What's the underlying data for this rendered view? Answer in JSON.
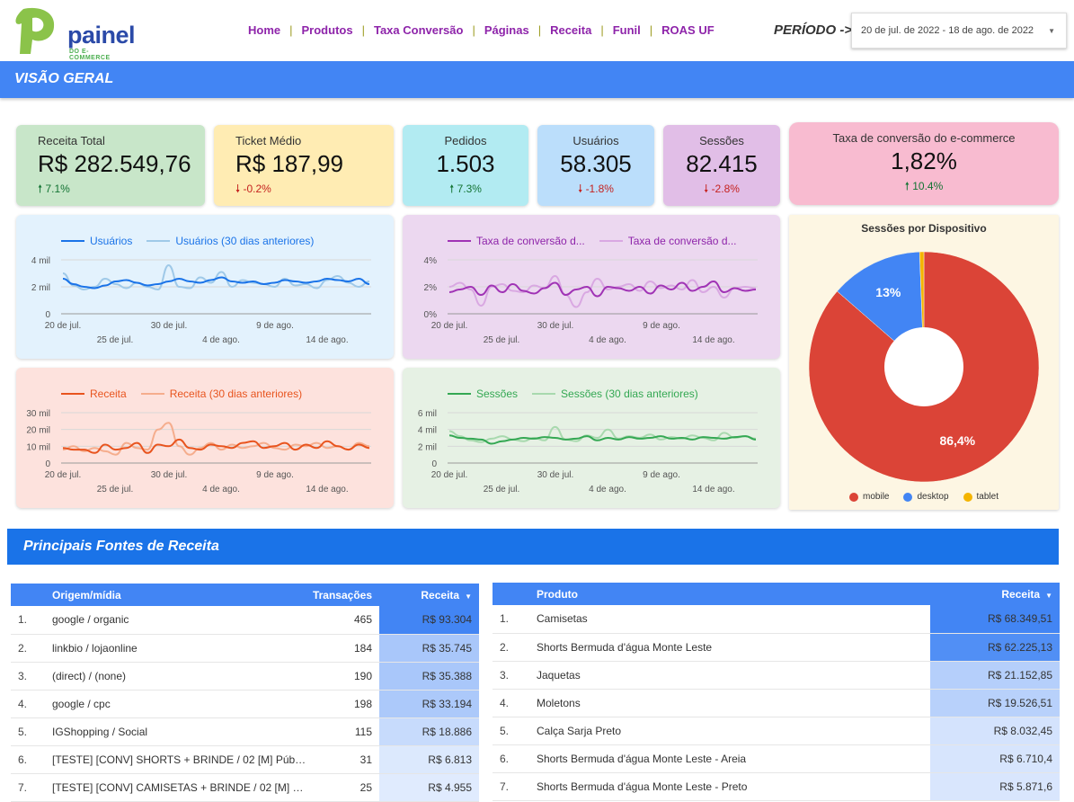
{
  "header": {
    "logo_text": "painel",
    "logo_subtext": "DO E-COMMERCE",
    "nav": [
      "Home",
      "Produtos",
      "Taxa Conversão",
      "Páginas",
      "Receita",
      "Funil",
      "ROAS UF"
    ],
    "periodo_label": "PERÍODO ->",
    "date_range": "20 de jul. de 2022 - 18 de ago. de 2022"
  },
  "section_title": "VISÃO GERAL",
  "kpis": {
    "receita": {
      "label": "Receita Total",
      "value": "R$ 282.549,76",
      "change": "7.1%",
      "dir": "up"
    },
    "ticket": {
      "label": "Ticket Médio",
      "value": "R$ 187,99",
      "change": "-0.2%",
      "dir": "down"
    },
    "pedidos": {
      "label": "Pedidos",
      "value": "1.503",
      "change": "7.3%",
      "dir": "up"
    },
    "usuarios": {
      "label": "Usuários",
      "value": "58.305",
      "change": "-1.8%",
      "dir": "down"
    },
    "sessoes": {
      "label": "Sessões",
      "value": "82.415",
      "change": "-2.8%",
      "dir": "down"
    },
    "taxa": {
      "label": "Taxa de conversão do e-commerce",
      "value": "1,82%",
      "change": "10.4%",
      "dir": "up"
    }
  },
  "colors": {
    "usuarios": "#1a73e8",
    "usuarios_prev": "#9fc9e8",
    "taxa": "#a033b5",
    "taxa_prev": "#d9a8e2",
    "receita": "#e8541e",
    "receita_prev": "#f5ad8d",
    "sessoes": "#34a853",
    "sessoes_prev": "#a8d9ae",
    "mobile": "#db4437",
    "desktop": "#4285f4",
    "tablet": "#f4b400"
  },
  "chart_data": [
    {
      "type": "line",
      "x_ticks_row1": [
        "20 de jul.",
        "30 de jul.",
        "9 de ago."
      ],
      "x_ticks_row2": [
        "25 de jul.",
        "4 de ago.",
        "14 de ago."
      ],
      "y_ticks": [
        "4 mil",
        "2 mil",
        "0"
      ],
      "ylim": [
        0,
        4
      ],
      "series": [
        {
          "name": "Usuários",
          "values": [
            2.6,
            2.2,
            2.0,
            1.9,
            2.1,
            2.4,
            2.5,
            2.3,
            2.1,
            2.2,
            2.4,
            2.6,
            2.4,
            2.3,
            2.5,
            2.7,
            2.4,
            2.3,
            2.4,
            2.2,
            2.3,
            2.5,
            2.4,
            2.3,
            2.4,
            2.6,
            2.5,
            2.4,
            2.6,
            2.2
          ]
        },
        {
          "name": "Usuários (30 dias anteriores)",
          "values": [
            3.0,
            2.1,
            1.8,
            2.0,
            2.6,
            2.2,
            1.9,
            2.3,
            2.0,
            1.8,
            3.6,
            2.0,
            1.9,
            2.7,
            2.3,
            3.1,
            2.0,
            2.5,
            2.3,
            2.2,
            2.0,
            2.6,
            2.1,
            2.2,
            1.9,
            2.5,
            2.8,
            2.3,
            2.0,
            2.4
          ]
        }
      ]
    },
    {
      "type": "line",
      "x_ticks_row1": [
        "20 de jul.",
        "30 de jul.",
        "9 de ago."
      ],
      "x_ticks_row2": [
        "25 de jul.",
        "4 de ago.",
        "14 de ago."
      ],
      "y_ticks": [
        "4%",
        "2%",
        "0%"
      ],
      "ylim": [
        0,
        4
      ],
      "series": [
        {
          "name": "Taxa de conversão d...",
          "values": [
            1.6,
            1.8,
            2.0,
            1.4,
            2.1,
            1.6,
            2.2,
            1.7,
            1.5,
            1.9,
            2.3,
            1.4,
            1.8,
            2.0,
            1.3,
            2.0,
            1.9,
            1.7,
            2.0,
            1.5,
            2.1,
            1.8,
            2.3,
            1.7,
            2.0,
            2.4,
            1.6,
            1.9,
            1.7,
            1.8
          ]
        },
        {
          "name": "Taxa de conversão d...",
          "values": [
            2.0,
            2.3,
            1.8,
            0.6,
            2.0,
            2.2,
            1.7,
            1.6,
            2.1,
            1.9,
            2.8,
            1.4,
            0.5,
            1.6,
            2.6,
            1.8,
            2.0,
            2.2,
            1.7,
            2.4,
            1.9,
            2.1,
            1.8,
            2.5,
            1.6,
            2.0,
            1.2,
            1.9,
            2.0,
            1.9
          ]
        }
      ]
    },
    {
      "type": "line",
      "x_ticks_row1": [
        "20 de jul.",
        "30 de jul.",
        "9 de ago."
      ],
      "x_ticks_row2": [
        "25 de jul.",
        "4 de ago.",
        "14 de ago."
      ],
      "y_ticks": [
        "30 mil",
        "20 mil",
        "10 mil",
        "0"
      ],
      "ylim": [
        0,
        30
      ],
      "series": [
        {
          "name": "Receita",
          "values": [
            9,
            8,
            8,
            6,
            11,
            8,
            9,
            12,
            6,
            11,
            10,
            14,
            9,
            8,
            11,
            10,
            9,
            12,
            13,
            9,
            10,
            12,
            8,
            11,
            9,
            13,
            10,
            8,
            11,
            9
          ]
        },
        {
          "name": "Receita (30 dias anteriores)",
          "values": [
            8,
            10,
            7,
            9,
            7,
            5,
            12,
            9,
            8,
            20,
            24,
            10,
            5,
            9,
            12,
            8,
            11,
            9,
            10,
            12,
            9,
            8,
            11,
            10,
            12,
            9,
            10,
            8,
            12,
            10
          ]
        }
      ]
    },
    {
      "type": "line",
      "x_ticks_row1": [
        "20 de jul.",
        "30 de jul.",
        "9 de ago."
      ],
      "x_ticks_row2": [
        "25 de jul.",
        "4 de ago.",
        "14 de ago."
      ],
      "y_ticks": [
        "6 mil",
        "4 mil",
        "2 mil",
        "0"
      ],
      "ylim": [
        0,
        6
      ],
      "series": [
        {
          "name": "Sessões",
          "values": [
            3.3,
            3.0,
            2.9,
            2.8,
            2.3,
            2.6,
            2.8,
            3.0,
            2.9,
            3.1,
            3.0,
            2.8,
            2.9,
            3.2,
            2.7,
            3.0,
            2.8,
            3.1,
            2.9,
            3.0,
            3.2,
            2.9,
            3.0,
            2.8,
            3.1,
            3.0,
            2.9,
            3.1,
            3.2,
            2.8
          ]
        },
        {
          "name": "Sessões (30 dias anteriores)",
          "values": [
            3.8,
            3.2,
            2.7,
            2.5,
            2.9,
            3.2,
            2.8,
            2.6,
            3.0,
            2.7,
            4.3,
            2.8,
            2.6,
            3.3,
            3.0,
            4.0,
            2.9,
            3.2,
            3.0,
            3.4,
            2.8,
            3.1,
            2.9,
            3.3,
            3.0,
            2.7,
            3.6,
            3.0,
            3.2,
            2.9
          ]
        }
      ]
    },
    {
      "type": "pie",
      "title": "Sessões por Dispositivo",
      "categories": [
        "mobile",
        "desktop",
        "tablet"
      ],
      "values": [
        86.4,
        13.0,
        0.6
      ],
      "labels": [
        "86,4%",
        "13%",
        ""
      ]
    }
  ],
  "section2_title": "Principais Fontes de Receita",
  "table_sources": {
    "headers": [
      "Origem/mídia",
      "Transações",
      "Receita"
    ],
    "rows": [
      {
        "idx": "1.",
        "name": "google / organic",
        "tx": "465",
        "rev": "R$ 93.304",
        "share": 1.0
      },
      {
        "idx": "2.",
        "name": "linkbio / lojaonline",
        "tx": "184",
        "rev": "R$ 35.745",
        "share": 0.38
      },
      {
        "idx": "3.",
        "name": "(direct) / (none)",
        "tx": "190",
        "rev": "R$ 35.388",
        "share": 0.38
      },
      {
        "idx": "4.",
        "name": "google / cpc",
        "tx": "198",
        "rev": "R$ 33.194",
        "share": 0.36
      },
      {
        "idx": "5.",
        "name": "IGShopping / Social",
        "tx": "115",
        "rev": "R$ 18.886",
        "share": 0.2
      },
      {
        "idx": "6.",
        "name": "[TESTE] [CONV] SHORTS + BRINDE / 02 [M] Púb…",
        "tx": "31",
        "rev": "R$ 6.813",
        "share": 0.07
      },
      {
        "idx": "7.",
        "name": "[TESTE] [CONV] CAMISETAS + BRINDE / 02 [M] …",
        "tx": "25",
        "rev": "R$ 4.955",
        "share": 0.05
      }
    ]
  },
  "table_products": {
    "headers": [
      "Produto",
      "Receita"
    ],
    "rows": [
      {
        "idx": "1.",
        "name": "Camisetas",
        "rev": "R$ 68.349,51",
        "share": 1.0
      },
      {
        "idx": "2.",
        "name": "Shorts Bermuda d'água Monte Leste",
        "rev": "R$ 62.225,13",
        "share": 0.91
      },
      {
        "idx": "3.",
        "name": "Jaquetas",
        "rev": "R$ 21.152,85",
        "share": 0.31
      },
      {
        "idx": "4.",
        "name": "Moletons",
        "rev": "R$ 19.526,51",
        "share": 0.29
      },
      {
        "idx": "5.",
        "name": "Calça Sarja Preto",
        "rev": "R$ 8.032,45",
        "share": 0.12
      },
      {
        "idx": "6.",
        "name": "Shorts Bermuda d'água Monte Leste - Areia",
        "rev": "R$ 6.710,4",
        "share": 0.1
      },
      {
        "idx": "7.",
        "name": "Shorts Bermuda d'água Monte Leste - Preto",
        "rev": "R$ 5.871,6",
        "share": 0.09
      }
    ]
  }
}
